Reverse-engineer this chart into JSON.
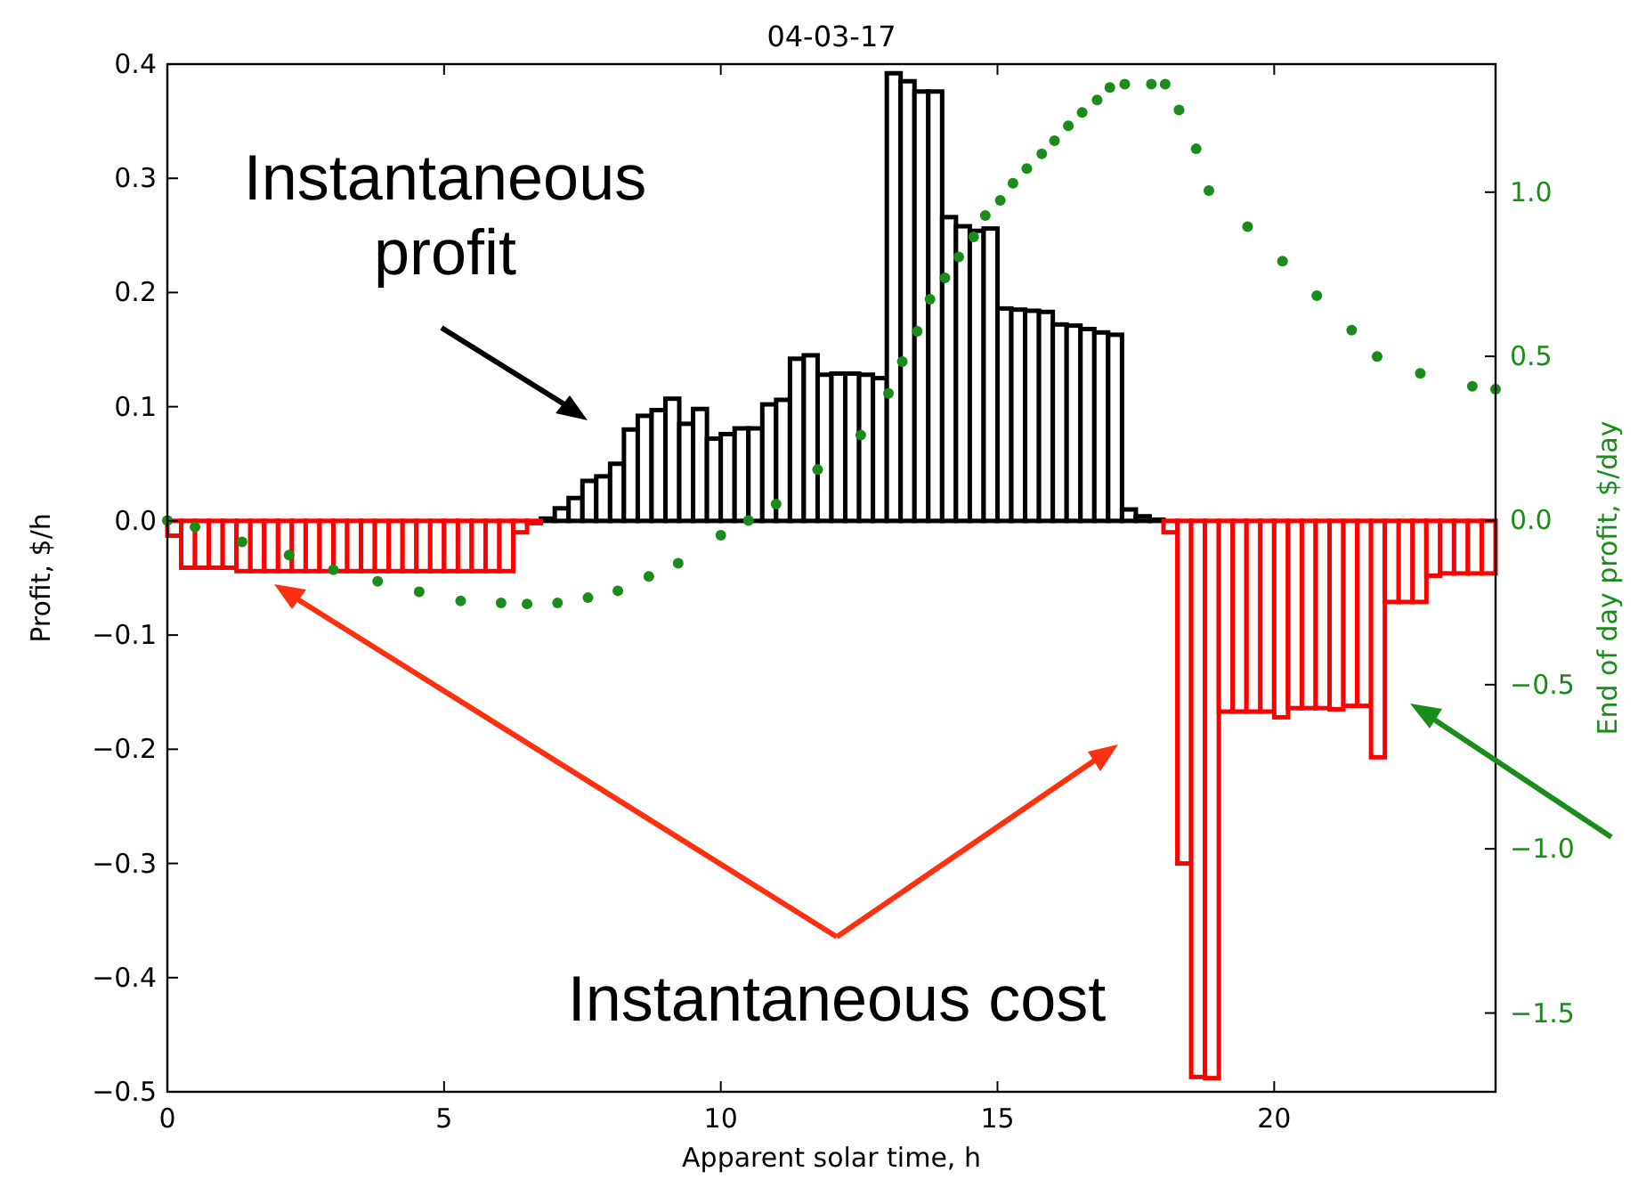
{
  "chart_data": {
    "type": "bar",
    "title": "04-03-17",
    "xlabel": "Apparent solar time, h",
    "ylabel": "Profit, $/h",
    "y2label": "End of day profit, $/day",
    "annotations": [
      "Instantaneous profit",
      "Instantaneous cost"
    ],
    "xlim": [
      0,
      24
    ],
    "xticks": [
      0,
      5,
      10,
      15,
      20
    ],
    "ylim": [
      -0.5,
      0.4
    ],
    "yticks": [
      {
        "value": -0.5,
        "label": "−0.5"
      },
      {
        "value": -0.4,
        "label": "−0.4"
      },
      {
        "value": -0.3,
        "label": "−0.3"
      },
      {
        "value": -0.2,
        "label": "−0.2"
      },
      {
        "value": -0.1,
        "label": "−0.1"
      },
      {
        "value": 0,
        "label": "0.0"
      },
      {
        "value": 0.1,
        "label": "0.1"
      },
      {
        "value": 0.2,
        "label": "0.2"
      },
      {
        "value": 0.3,
        "label": "0.3"
      },
      {
        "value": 0.4,
        "label": "0.4"
      }
    ],
    "y2lim": [
      -1.74,
      1.39
    ],
    "y2ticks": [
      {
        "value": -1.5,
        "label": "−1.5"
      },
      {
        "value": -1,
        "label": "−1.0"
      },
      {
        "value": -0.5,
        "label": "−0.5"
      },
      {
        "value": 0,
        "label": "0.0"
      },
      {
        "value": 0.5,
        "label": "0.5"
      },
      {
        "value": 1,
        "label": "1.0"
      }
    ],
    "x": [
      0.125,
      0.375,
      0.625,
      0.875,
      1.125,
      1.375,
      1.625,
      1.875,
      2.125,
      2.375,
      2.625,
      2.875,
      3.125,
      3.375,
      3.625,
      3.875,
      4.125,
      4.375,
      4.625,
      4.875,
      5.125,
      5.375,
      5.625,
      5.875,
      6.125,
      6.375,
      6.625,
      6.875,
      7.125,
      7.375,
      7.625,
      7.875,
      8.125,
      8.375,
      8.625,
      8.875,
      9.125,
      9.375,
      9.625,
      9.875,
      10.125,
      10.375,
      10.625,
      10.875,
      11.125,
      11.375,
      11.625,
      11.875,
      12.125,
      12.375,
      12.625,
      12.875,
      13.125,
      13.375,
      13.625,
      13.875,
      14.125,
      14.375,
      14.625,
      14.875,
      15.125,
      15.375,
      15.625,
      15.875,
      16.125,
      16.375,
      16.625,
      16.875,
      17.125,
      17.375,
      17.625,
      17.875,
      18.125,
      18.375,
      18.625,
      18.875,
      19.125,
      19.375,
      19.625,
      19.875,
      20.125,
      20.375,
      20.625,
      20.875,
      21.125,
      21.375,
      21.625,
      21.875,
      22.125,
      22.375,
      22.625,
      22.875,
      23.125,
      23.375,
      23.625,
      23.875
    ],
    "series": [
      {
        "color": "#000000",
        "values": [
          null,
          null,
          null,
          null,
          null,
          null,
          null,
          null,
          null,
          null,
          null,
          null,
          null,
          null,
          null,
          null,
          null,
          null,
          null,
          null,
          null,
          null,
          null,
          null,
          null,
          null,
          null,
          0.002,
          0.011,
          0.02,
          0.035,
          0.039,
          0.05,
          0.08,
          0.092,
          0.097,
          0.107,
          0.085,
          0.098,
          0.072,
          0.076,
          0.081,
          0.081,
          0.102,
          0.106,
          0.142,
          0.145,
          0.128,
          0.129,
          0.129,
          0.128,
          0.125,
          0.392,
          0.385,
          0.376,
          0.376,
          0.266,
          0.258,
          0.254,
          0.256,
          0.186,
          0.185,
          0.184,
          0.183,
          0.172,
          0.171,
          0.168,
          0.165,
          0.163,
          0.01,
          0.004,
          0.001,
          null,
          null,
          null,
          null,
          null,
          null,
          null,
          null,
          null,
          null,
          null,
          null,
          null,
          null,
          null,
          null,
          null,
          null,
          null,
          null,
          null,
          null,
          null,
          null
        ]
      },
      {
        "color": "#ff0000",
        "values": [
          -0.013,
          -0.041,
          -0.041,
          -0.041,
          -0.041,
          -0.044,
          -0.044,
          -0.044,
          -0.044,
          -0.044,
          -0.044,
          -0.044,
          -0.044,
          -0.044,
          -0.044,
          -0.044,
          -0.044,
          -0.044,
          -0.044,
          -0.044,
          -0.044,
          -0.044,
          -0.044,
          -0.044,
          -0.044,
          -0.01,
          -0.002,
          null,
          null,
          null,
          null,
          null,
          null,
          null,
          null,
          null,
          null,
          null,
          null,
          null,
          null,
          null,
          null,
          null,
          null,
          null,
          null,
          null,
          null,
          null,
          null,
          null,
          null,
          null,
          null,
          null,
          null,
          null,
          null,
          null,
          null,
          null,
          null,
          null,
          null,
          null,
          null,
          null,
          null,
          null,
          null,
          null,
          -0.01,
          -0.3,
          -0.487,
          -0.488,
          -0.167,
          -0.167,
          -0.167,
          -0.167,
          -0.172,
          -0.164,
          -0.164,
          -0.164,
          -0.165,
          -0.162,
          -0.162,
          -0.207,
          -0.071,
          -0.071,
          -0.071,
          -0.048,
          -0.046,
          -0.046,
          -0.046,
          -0.046
        ]
      },
      {
        "type": "scatter",
        "axis": "y2",
        "marker": "circle",
        "color": "#1a8c1a",
        "x": [
          0,
          0.5,
          1.35,
          2.2,
          3.0,
          3.8,
          4.55,
          5.3,
          6.03,
          6.5,
          7.05,
          7.6,
          8.14,
          8.7,
          9.23,
          10.0,
          10.5,
          11.0,
          11.75,
          12.53,
          13.03,
          13.28,
          13.55,
          13.78,
          14.05,
          14.3,
          14.57,
          14.78,
          15.05,
          15.28,
          15.53,
          15.8,
          16.03,
          16.28,
          16.53,
          16.8,
          17.03,
          17.3,
          17.78,
          18.03,
          18.28,
          18.59,
          18.82,
          19.52,
          20.15,
          20.77,
          21.4,
          21.86,
          22.64,
          23.58,
          24
        ],
        "values": [
          0,
          -0.02,
          -0.065,
          -0.105,
          -0.15,
          -0.185,
          -0.217,
          -0.245,
          -0.251,
          -0.254,
          -0.251,
          -0.235,
          -0.214,
          -0.17,
          -0.13,
          -0.045,
          0.0,
          0.05,
          0.155,
          0.26,
          0.387,
          0.484,
          0.576,
          0.674,
          0.739,
          0.803,
          0.864,
          0.929,
          0.975,
          1.027,
          1.072,
          1.117,
          1.157,
          1.202,
          1.243,
          1.281,
          1.319,
          1.329,
          1.329,
          1.329,
          1.25,
          1.132,
          1.005,
          0.895,
          0.79,
          0.685,
          0.58,
          0.5,
          0.448,
          0.409,
          0.4
        ]
      }
    ]
  }
}
